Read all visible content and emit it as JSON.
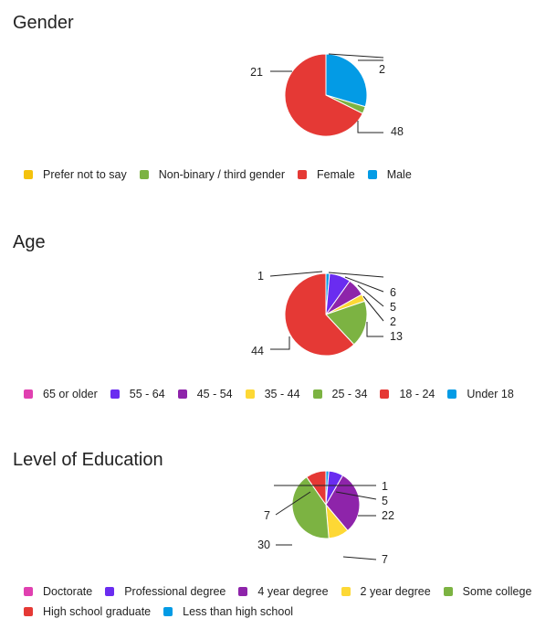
{
  "chart_data": [
    {
      "type": "pie",
      "title": "Gender",
      "legend": "bottom",
      "slices": [
        {
          "label": "Prefer not to say",
          "value": 0,
          "color": "#f4c20d"
        },
        {
          "label": "Non-binary / third gender",
          "value": 2,
          "color": "#7cb342"
        },
        {
          "label": "Female",
          "value": 48,
          "color": "#e53935"
        },
        {
          "label": "Male",
          "value": 21,
          "color": "#039be5"
        }
      ]
    },
    {
      "type": "pie",
      "title": "Age",
      "legend": "bottom",
      "slices": [
        {
          "label": "65 or older",
          "value": 0,
          "color": "#e040b0"
        },
        {
          "label": "55 - 64",
          "value": 6,
          "color": "#6a2cf0"
        },
        {
          "label": "45 - 54",
          "value": 5,
          "color": "#8e24aa"
        },
        {
          "label": "35 - 44",
          "value": 2,
          "color": "#fdd835"
        },
        {
          "label": "25 - 34",
          "value": 13,
          "color": "#7cb342"
        },
        {
          "label": "18 - 24",
          "value": 44,
          "color": "#e53935"
        },
        {
          "label": "Under 18",
          "value": 1,
          "color": "#039be5"
        }
      ],
      "outer_labels": [
        "1",
        "6",
        "5",
        "2",
        "13",
        "44"
      ]
    },
    {
      "type": "pie",
      "title": "Level of Education",
      "legend": "bottom",
      "slices": [
        {
          "label": "Doctorate",
          "value": 0,
          "color": "#e040b0"
        },
        {
          "label": "Professional degree",
          "value": 5,
          "color": "#6a2cf0"
        },
        {
          "label": "4 year degree",
          "value": 22,
          "color": "#8e24aa"
        },
        {
          "label": "2 year degree",
          "value": 7,
          "color": "#fdd835"
        },
        {
          "label": "Some college",
          "value": 30,
          "color": "#7cb342"
        },
        {
          "label": "High school graduate",
          "value": 7,
          "color": "#e53935"
        },
        {
          "label": "Less than high school",
          "value": 1,
          "color": "#039be5"
        }
      ]
    }
  ]
}
